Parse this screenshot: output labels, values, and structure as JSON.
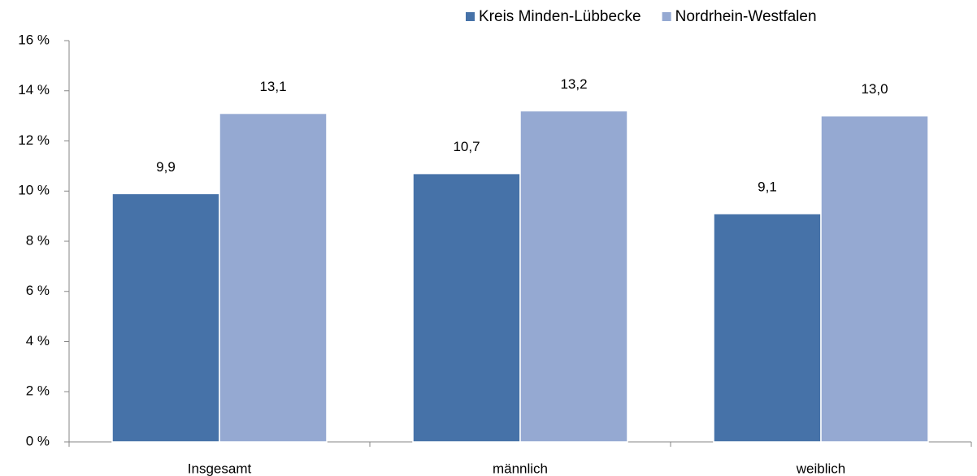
{
  "chart_data": {
    "type": "bar",
    "categories": [
      "Insgesamt",
      "männlich",
      "weiblich"
    ],
    "series": [
      {
        "name": "Kreis Minden-Lübbecke",
        "color": "#4672a8",
        "values": [
          9.9,
          10.7,
          9.1
        ],
        "value_labels": [
          "9,9",
          "10,7",
          "9,1"
        ]
      },
      {
        "name": "Nordrhein-Westfalen",
        "color": "#95a9d2",
        "values": [
          13.1,
          13.2,
          13.0
        ],
        "value_labels": [
          "13,1",
          "13,2",
          "13,0"
        ]
      }
    ],
    "ylim": [
      0,
      16
    ],
    "yticks": [
      {
        "value": 0,
        "label": "0 %"
      },
      {
        "value": 2,
        "label": "2 %"
      },
      {
        "value": 4,
        "label": "4 %"
      },
      {
        "value": 6,
        "label": "6 %"
      },
      {
        "value": 8,
        "label": "8 %"
      },
      {
        "value": 10,
        "label": "10 %"
      },
      {
        "value": 12,
        "label": "12 %"
      },
      {
        "value": 14,
        "label": "14 %"
      },
      {
        "value": 16,
        "label": "16 %"
      }
    ],
    "legend": "top-right"
  }
}
